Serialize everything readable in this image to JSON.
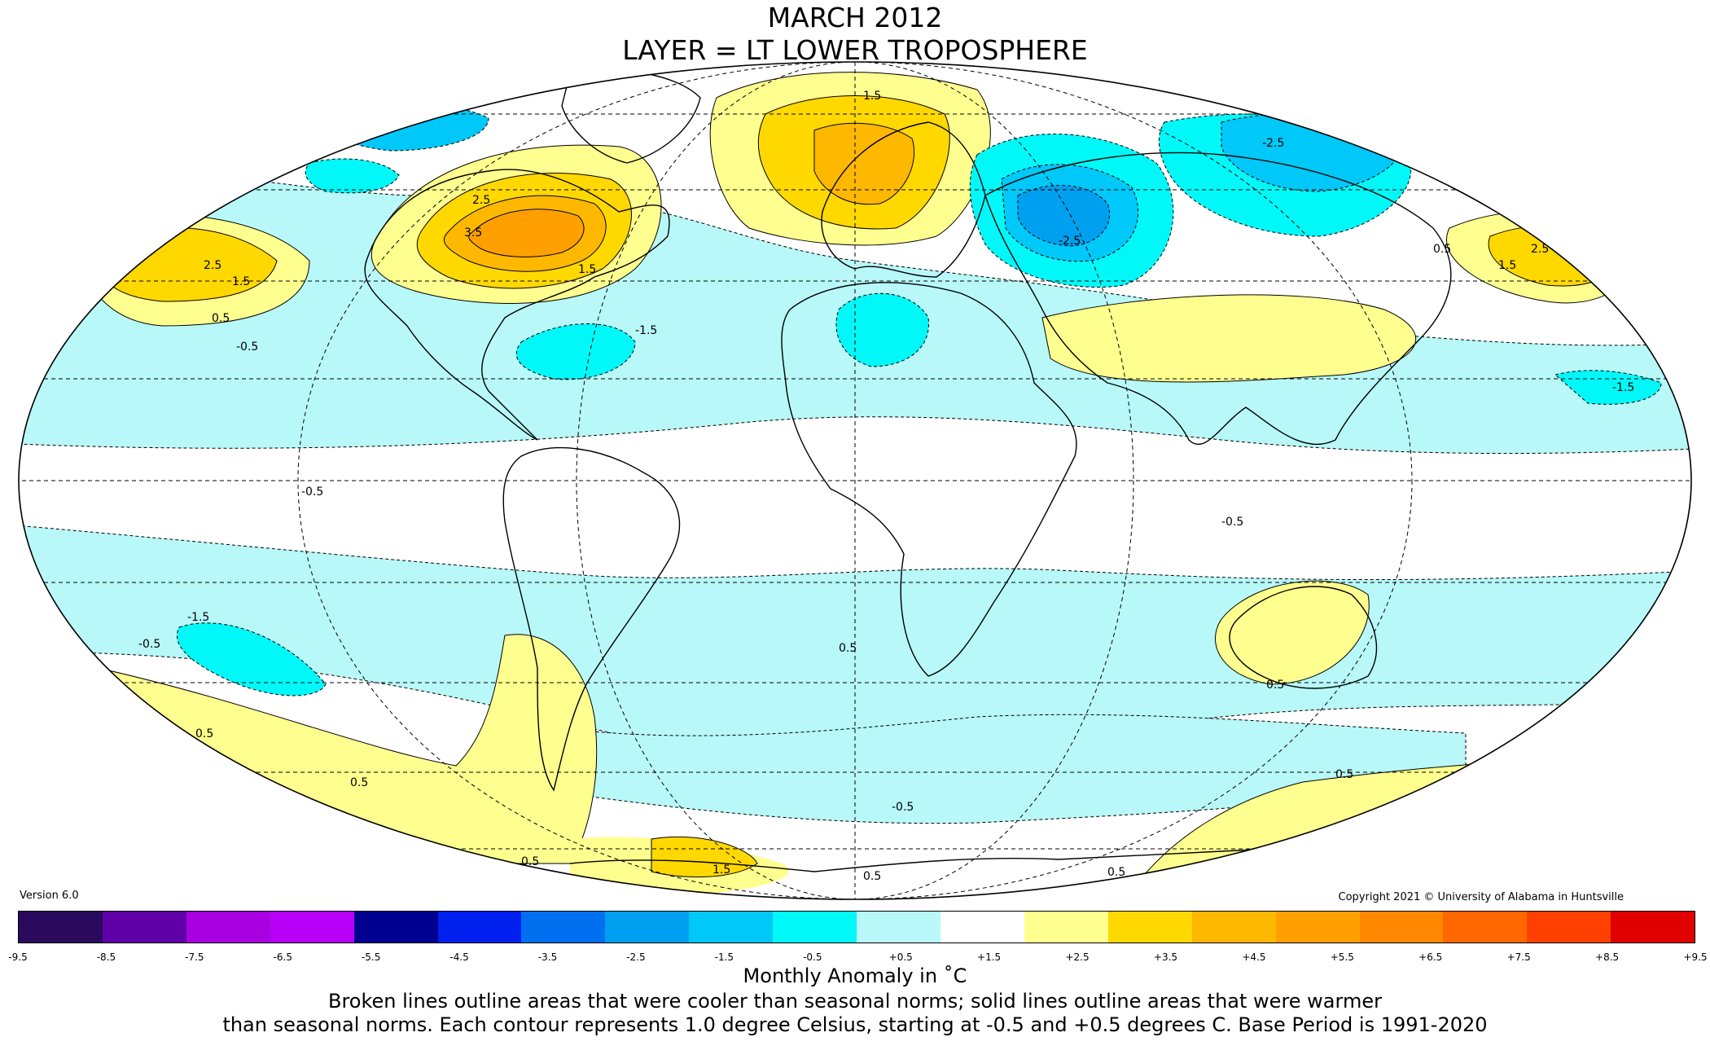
{
  "title": "MARCH 2012",
  "subtitle": "LAYER = LT LOWER TROPOSPHERE",
  "version": "Version 6.0",
  "copyright": "Copyright 2021 © University of Alabama in Huntsville",
  "units_label": "Monthly Anomaly in ˚C",
  "note_line1": "Broken lines outline areas that were cooler than seasonal norms; solid lines outline areas that were warmer",
  "note_line2": "than seasonal norms. Each contour represents 1.0 degree Celsius, starting at -0.5 and +0.5 degrees C. Base Period is 1991-2020",
  "colorbar": {
    "ticks": [
      "-9.5",
      "-8.5",
      "-7.5",
      "-6.5",
      "-5.5",
      "-4.5",
      "-3.5",
      "-2.5",
      "-1.5",
      "-0.5",
      "+0.5",
      "+1.5",
      "+2.5",
      "+3.5",
      "+4.5",
      "+5.5",
      "+6.5",
      "+7.5",
      "+8.5",
      "+9.5"
    ],
    "colors": [
      "#2a0a5c",
      "#6000a8",
      "#a800e0",
      "#b800f8",
      "#000090",
      "#0020f0",
      "#0070f0",
      "#00a0f0",
      "#00c8f8",
      "#00f8f8",
      "#b8f8f8",
      "#ffffff",
      "#ffff90",
      "#ffd800",
      "#ffb800",
      "#ffa000",
      "#ff8800",
      "#ff6800",
      "#ff4000",
      "#e00000"
    ]
  },
  "contour_labels": [
    "-2.5",
    "-1.5",
    "-0.5",
    "0.5",
    "1.5",
    "2.5",
    "3.5"
  ],
  "colors": {
    "cool_1": "#b8f8f8",
    "cool_2": "#00f8f8",
    "cool_3": "#00c8f8",
    "cool_4": "#00a0f0",
    "cool_5": "#0070f0",
    "warm_1": "#ffff90",
    "warm_2": "#ffd800",
    "warm_3": "#ffb800",
    "warm_4": "#ffa000",
    "warm_5": "#ff8800"
  }
}
